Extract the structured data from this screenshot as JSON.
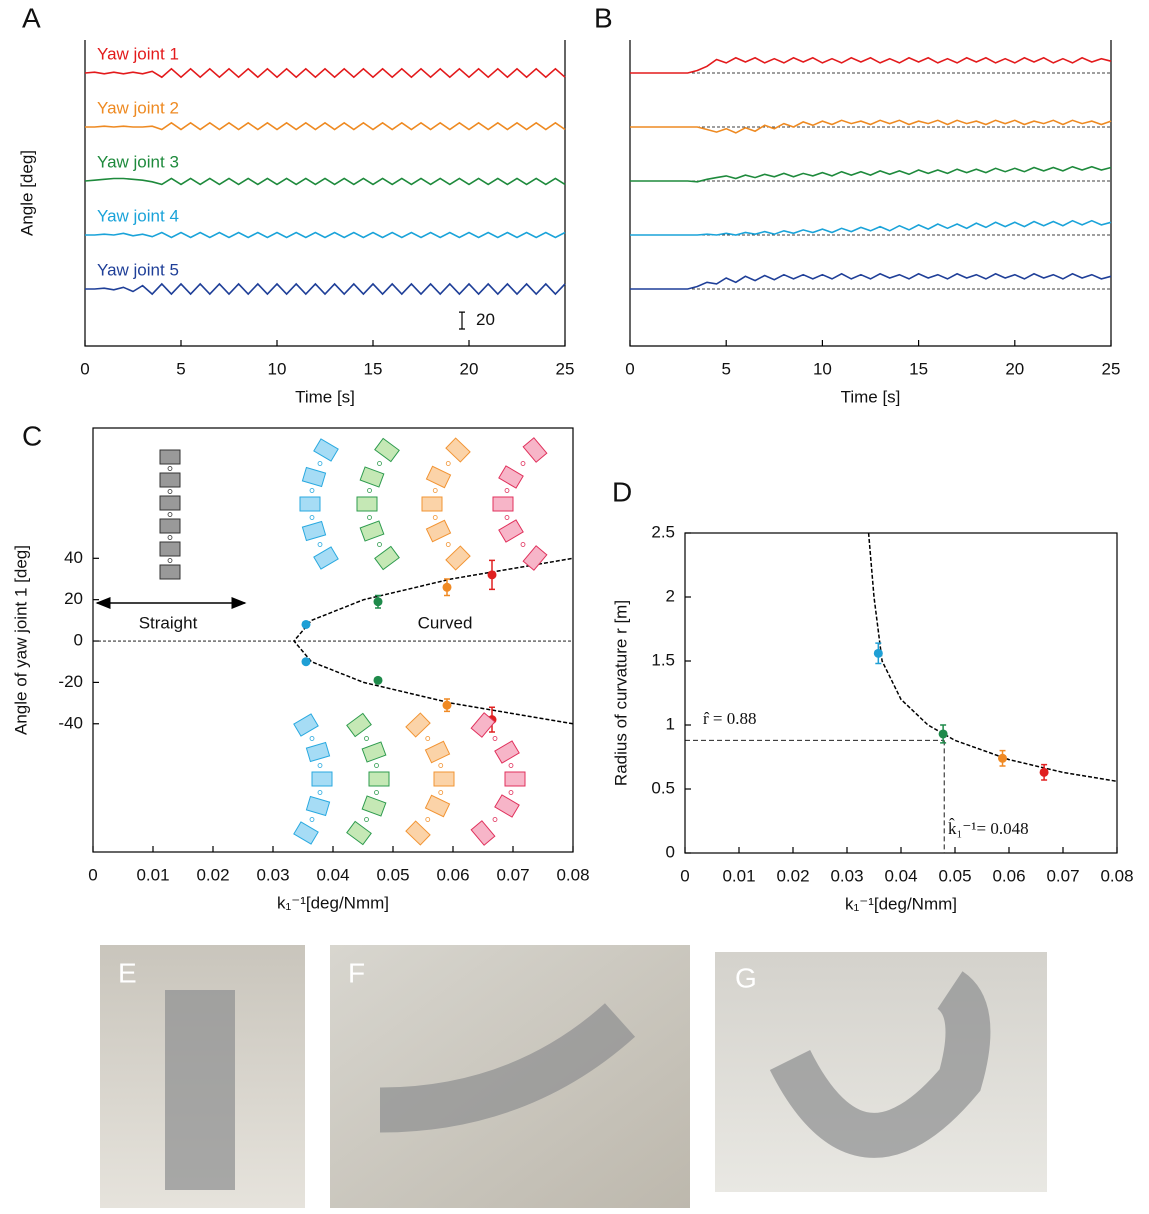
{
  "chart_data": [
    {
      "type": "line",
      "panel": "A",
      "x_label": "Time [s]",
      "y_label": "Angle [deg]",
      "x": [
        0,
        0.5,
        1,
        1.5,
        2,
        2.5,
        3,
        3.5,
        4,
        4.5,
        5,
        5.5,
        6,
        6.5,
        7,
        7.5,
        8,
        8.5,
        9,
        9.5,
        10,
        10.5,
        11,
        11.5,
        12,
        12.5,
        13,
        13.5,
        14,
        14.5,
        15,
        15.5,
        16,
        16.5,
        17,
        17.5,
        18,
        18.5,
        19,
        19.5,
        20,
        20.5,
        21,
        21.5,
        22,
        22.5,
        23,
        23.5,
        24,
        24.5,
        25
      ],
      "xlim": [
        0,
        25
      ],
      "xticks": [
        0,
        5,
        10,
        15,
        20,
        25
      ],
      "row_ylim": [
        -32,
        32
      ],
      "scale_bar": 20,
      "series": [
        {
          "name": "Yaw joint 1",
          "color": "#e31a1c",
          "values": [
            0,
            1,
            -1,
            1,
            -1,
            1,
            -1,
            2,
            -5,
            5,
            -5,
            5,
            -5,
            5,
            -5,
            5,
            -5,
            5,
            -5,
            5,
            -5,
            5,
            -5,
            5,
            -5,
            5,
            -5,
            5,
            -5,
            5,
            -5,
            5,
            -5,
            5,
            -5,
            5,
            -5,
            5,
            -5,
            5,
            -5,
            5,
            -5,
            5,
            -5,
            5,
            -5,
            5,
            -5,
            5,
            -5
          ]
        },
        {
          "name": "Yaw joint 2",
          "color": "#ee8a22",
          "values": [
            0,
            0,
            1,
            0,
            1,
            0,
            0,
            1,
            -3,
            5,
            -3,
            5,
            -3,
            5,
            -3,
            5,
            -3,
            5,
            -3,
            5,
            -3,
            5,
            -3,
            5,
            -3,
            5,
            -3,
            5,
            -3,
            5,
            -3,
            5,
            -3,
            5,
            -3,
            5,
            -3,
            5,
            -3,
            5,
            -3,
            5,
            -3,
            5,
            -3,
            5,
            -3,
            5,
            -3,
            5,
            -3
          ]
        },
        {
          "name": "Yaw joint 3",
          "color": "#1e8a3c",
          "values": [
            0,
            1,
            2,
            3,
            3,
            2,
            1,
            -1,
            -4,
            3,
            -4,
            3,
            -4,
            3,
            -4,
            3,
            -4,
            3,
            -4,
            3,
            -4,
            3,
            -4,
            3,
            -4,
            3,
            -4,
            3,
            -4,
            3,
            -4,
            3,
            -4,
            3,
            -4,
            3,
            -4,
            3,
            -4,
            3,
            -4,
            3,
            -4,
            3,
            -4,
            3,
            -4,
            3,
            -4,
            3,
            -4
          ]
        },
        {
          "name": "Yaw joint 4",
          "color": "#1aa3d9",
          "values": [
            0,
            0,
            1,
            0,
            2,
            -1,
            1,
            -2,
            3,
            -3,
            3,
            -3,
            3,
            -3,
            3,
            -3,
            3,
            -3,
            3,
            -3,
            3,
            -3,
            3,
            -3,
            3,
            -3,
            3,
            -3,
            3,
            -3,
            3,
            -3,
            3,
            -3,
            3,
            -3,
            3,
            -3,
            3,
            -3,
            3,
            -3,
            3,
            -3,
            3,
            -3,
            3,
            -3,
            3,
            -3,
            3
          ]
        },
        {
          "name": "Yaw joint 5",
          "color": "#1f3f98",
          "values": [
            0,
            0,
            1,
            -1,
            2,
            -3,
            4,
            -6,
            6,
            -6,
            6,
            -6,
            6,
            -6,
            6,
            -6,
            6,
            -6,
            6,
            -6,
            6,
            -6,
            6,
            -6,
            6,
            -6,
            6,
            -6,
            6,
            -6,
            6,
            -6,
            6,
            -6,
            6,
            -6,
            6,
            -6,
            6,
            -6,
            6,
            -6,
            6,
            -6,
            6,
            -6,
            6,
            -6,
            6,
            -6,
            6
          ]
        }
      ]
    },
    {
      "type": "line",
      "panel": "B",
      "x_label": "Time [s]",
      "baseline": true,
      "x": [
        0,
        0.5,
        1,
        1.5,
        2,
        2.5,
        3,
        3.5,
        4,
        4.5,
        5,
        5.5,
        6,
        6.5,
        7,
        7.5,
        8,
        8.5,
        9,
        9.5,
        10,
        10.5,
        11,
        11.5,
        12,
        12.5,
        13,
        13.5,
        14,
        14.5,
        15,
        15.5,
        16,
        16.5,
        17,
        17.5,
        18,
        18.5,
        19,
        19.5,
        20,
        20.5,
        21,
        21.5,
        22,
        22.5,
        23,
        23.5,
        24,
        24.5,
        25
      ],
      "xlim": [
        0,
        25
      ],
      "xticks": [
        0,
        5,
        10,
        15,
        20,
        25
      ],
      "row_ylim": [
        -32,
        32
      ],
      "series": [
        {
          "color": "#e31a1c",
          "values": [
            0,
            0,
            0,
            0,
            0,
            0,
            0,
            3,
            8,
            16,
            12,
            18,
            13,
            18,
            12,
            17,
            12,
            18,
            13,
            18,
            12,
            17,
            12,
            18,
            13,
            18,
            12,
            17,
            12,
            18,
            13,
            18,
            12,
            17,
            12,
            18,
            13,
            18,
            12,
            17,
            12,
            18,
            13,
            18,
            12,
            17,
            12,
            18,
            13,
            17,
            14
          ]
        },
        {
          "color": "#ee8a22",
          "values": [
            0,
            0,
            0,
            0,
            0,
            0,
            0,
            0,
            -3,
            -6,
            -2,
            -7,
            -1,
            -5,
            2,
            -2,
            4,
            0,
            6,
            2,
            7,
            3,
            8,
            4,
            7,
            3,
            8,
            4,
            8,
            3,
            7,
            4,
            8,
            3,
            8,
            4,
            7,
            3,
            8,
            4,
            8,
            3,
            7,
            4,
            8,
            3,
            8,
            4,
            7,
            3,
            7
          ]
        },
        {
          "color": "#1e8a3c",
          "values": [
            0,
            0,
            0,
            0,
            0,
            0,
            0,
            -1,
            2,
            4,
            6,
            3,
            7,
            4,
            8,
            5,
            9,
            5,
            9,
            6,
            10,
            6,
            11,
            7,
            11,
            7,
            12,
            8,
            12,
            8,
            13,
            9,
            13,
            9,
            14,
            10,
            14,
            10,
            15,
            11,
            15,
            11,
            16,
            12,
            16,
            12,
            17,
            13,
            17,
            13,
            16
          ]
        },
        {
          "color": "#1aa3d9",
          "values": [
            0,
            0,
            0,
            0,
            0,
            0,
            0,
            0,
            1,
            0,
            2,
            0,
            3,
            1,
            4,
            1,
            5,
            2,
            6,
            3,
            7,
            3,
            8,
            4,
            9,
            5,
            10,
            5,
            11,
            6,
            12,
            7,
            13,
            8,
            13,
            8,
            14,
            9,
            15,
            10,
            15,
            10,
            16,
            11,
            16,
            11,
            17,
            12,
            17,
            12,
            15
          ]
        },
        {
          "color": "#1f3f98",
          "values": [
            0,
            0,
            0,
            0,
            0,
            0,
            0,
            3,
            8,
            6,
            13,
            8,
            15,
            10,
            16,
            11,
            17,
            12,
            17,
            12,
            17,
            12,
            18,
            12,
            17,
            12,
            18,
            13,
            17,
            12,
            18,
            13,
            17,
            12,
            18,
            13,
            17,
            12,
            18,
            13,
            17,
            12,
            18,
            13,
            17,
            12,
            18,
            13,
            17,
            12,
            15
          ]
        }
      ]
    },
    {
      "type": "scatter",
      "panel": "C",
      "x_label": "k₁⁻¹[deg/Nmm]",
      "y_label": "Angle of yaw joint 1 [deg]",
      "xlim": [
        0,
        0.08
      ],
      "xticks": [
        0,
        0.01,
        0.02,
        0.03,
        0.04,
        0.05,
        0.06,
        0.07,
        0.08
      ],
      "ylim": [
        -102,
        103
      ],
      "yticks": [
        -40,
        -20,
        0,
        20,
        40
      ],
      "hline": 0,
      "annotations": [
        "Straight",
        "Curved"
      ],
      "curve": {
        "x": [
          0.08,
          0.0597,
          0.0451,
          0.0364,
          0.0335,
          0.0364,
          0.0451,
          0.0597,
          0.08
        ],
        "y": [
          -40,
          -30,
          -20,
          -10,
          0,
          10,
          20,
          30,
          40
        ]
      },
      "series": [
        {
          "color": "#1f9fd5",
          "x": [
            0.0355,
            0.0355
          ],
          "values": [
            8,
            -10
          ],
          "errors": [
            1,
            1
          ]
        },
        {
          "color": "#1e8a4a",
          "x": [
            0.0475,
            0.0475
          ],
          "values": [
            19,
            -19
          ],
          "errors": [
            3,
            1
          ]
        },
        {
          "color": "#f08a24",
          "x": [
            0.059,
            0.059
          ],
          "values": [
            26,
            -31
          ],
          "errors": [
            4,
            3
          ]
        },
        {
          "color": "#e02020",
          "x": [
            0.0665,
            0.0665
          ],
          "values": [
            32,
            -38
          ],
          "errors": [
            7,
            6
          ]
        }
      ]
    },
    {
      "type": "scatter",
      "panel": "D",
      "x_label": "k₁⁻¹[deg/Nmm]",
      "y_label": "Radius of curvature  r  [m]",
      "xlim": [
        0,
        0.08
      ],
      "xticks": [
        0,
        0.01,
        0.02,
        0.03,
        0.04,
        0.05,
        0.06,
        0.07,
        0.08
      ],
      "ylim": [
        0,
        2.5
      ],
      "yticks": [
        0,
        0.5,
        1,
        1.5,
        2,
        2.5
      ],
      "annotations": [
        "r̂ = 0.88",
        "k̂₁⁻¹= 0.048"
      ],
      "ref": {
        "x": 0.048,
        "y": 0.88
      },
      "curve": {
        "x": [
          0.034,
          0.035,
          0.0365,
          0.04,
          0.045,
          0.05,
          0.06,
          0.07,
          0.08
        ],
        "y": [
          2.5,
          2.0,
          1.5,
          1.2,
          1.0,
          0.88,
          0.73,
          0.63,
          0.56
        ]
      },
      "series": [
        {
          "color": "#1f9fd5",
          "x": [
            0.0358
          ],
          "values": [
            1.56
          ],
          "errors": [
            0.08
          ]
        },
        {
          "color": "#1e8a4a",
          "x": [
            0.0478
          ],
          "values": [
            0.93
          ],
          "errors": [
            0.07
          ]
        },
        {
          "color": "#f08a24",
          "x": [
            0.0588
          ],
          "values": [
            0.74
          ],
          "errors": [
            0.06
          ]
        },
        {
          "color": "#e02020",
          "x": [
            0.0665
          ],
          "values": [
            0.63
          ],
          "errors": [
            0.06
          ]
        }
      ]
    }
  ],
  "photos": [
    {
      "label": "E"
    },
    {
      "label": "F"
    },
    {
      "label": "G"
    }
  ]
}
